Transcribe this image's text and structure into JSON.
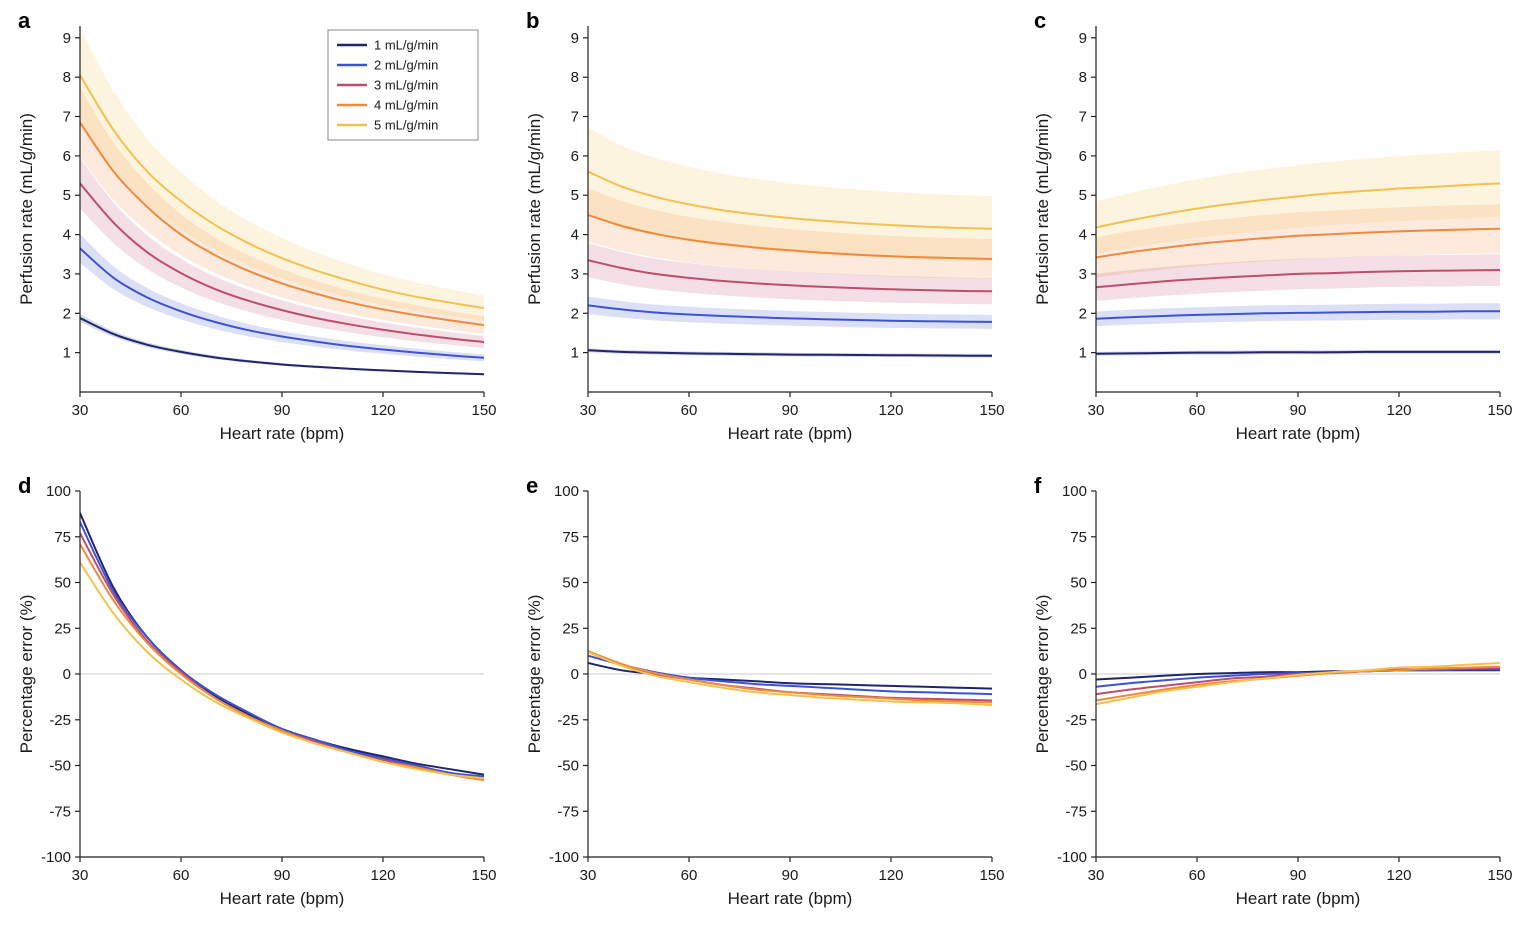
{
  "figure": {
    "background": "#ffffff",
    "axis_color": "#222222",
    "zero_line_color": "#d6d6d6",
    "panel_labels": [
      "a",
      "b",
      "c",
      "d",
      "e",
      "f"
    ]
  },
  "chart_data": [
    {
      "panel_label": "a",
      "type": "line",
      "xlabel": "Heart rate (bpm)",
      "ylabel": "Perfusion rate (mL/g/min)",
      "xlim": [
        30,
        150
      ],
      "ylim": [
        0,
        9.3
      ],
      "xticks": [
        30,
        60,
        90,
        120,
        150
      ],
      "yticks": [
        1,
        2,
        3,
        4,
        5,
        6,
        7,
        8,
        9
      ],
      "grid": false,
      "legend": true,
      "legend_position": "upper-right",
      "x": [
        30,
        40,
        50,
        60,
        70,
        80,
        90,
        100,
        110,
        120,
        130,
        140,
        150
      ],
      "series": [
        {
          "name": "1 mL/g/min",
          "color": "#20256e",
          "band_frac": 0.05,
          "values": [
            1.88,
            1.47,
            1.2,
            1.02,
            0.88,
            0.78,
            0.7,
            0.64,
            0.59,
            0.55,
            0.51,
            0.48,
            0.45
          ]
        },
        {
          "name": "2 mL/g/min",
          "color": "#3d52d5",
          "band_frac": 0.1,
          "values": [
            3.65,
            2.9,
            2.4,
            2.05,
            1.78,
            1.57,
            1.41,
            1.28,
            1.17,
            1.08,
            1.0,
            0.93,
            0.87
          ]
        },
        {
          "name": "3 mL/g/min",
          "color": "#bf4d6e",
          "band_frac": 0.12,
          "values": [
            5.3,
            4.3,
            3.55,
            3.02,
            2.62,
            2.32,
            2.08,
            1.88,
            1.72,
            1.58,
            1.46,
            1.36,
            1.27
          ]
        },
        {
          "name": "4 mL/g/min",
          "color": "#ef8a3c",
          "band_frac": 0.13,
          "values": [
            6.85,
            5.6,
            4.7,
            4.0,
            3.48,
            3.08,
            2.76,
            2.5,
            2.28,
            2.1,
            1.95,
            1.82,
            1.7
          ]
        },
        {
          "name": "5 mL/g/min",
          "color": "#f2c14e",
          "band_frac": 0.15,
          "values": [
            8.05,
            6.65,
            5.6,
            4.85,
            4.25,
            3.78,
            3.4,
            3.09,
            2.83,
            2.6,
            2.42,
            2.27,
            2.13
          ]
        }
      ]
    },
    {
      "panel_label": "b",
      "type": "line",
      "xlabel": "Heart rate (bpm)",
      "ylabel": "Perfusion rate (mL/g/min)",
      "xlim": [
        30,
        150
      ],
      "ylim": [
        0,
        9.3
      ],
      "xticks": [
        30,
        60,
        90,
        120,
        150
      ],
      "yticks": [
        1,
        2,
        3,
        4,
        5,
        6,
        7,
        8,
        9
      ],
      "grid": false,
      "legend": false,
      "x": [
        30,
        40,
        50,
        60,
        70,
        80,
        90,
        100,
        110,
        120,
        130,
        140,
        150
      ],
      "series": [
        {
          "name": "1 mL/g/min",
          "color": "#20256e",
          "band_frac": 0.05,
          "values": [
            1.06,
            1.02,
            1.0,
            0.98,
            0.97,
            0.96,
            0.95,
            0.945,
            0.94,
            0.935,
            0.93,
            0.925,
            0.92
          ]
        },
        {
          "name": "2 mL/g/min",
          "color": "#3d52d5",
          "band_frac": 0.1,
          "values": [
            2.2,
            2.1,
            2.02,
            1.97,
            1.93,
            1.9,
            1.87,
            1.85,
            1.83,
            1.81,
            1.8,
            1.79,
            1.78
          ]
        },
        {
          "name": "3 mL/g/min",
          "color": "#bf4d6e",
          "band_frac": 0.13,
          "values": [
            3.35,
            3.15,
            3.0,
            2.9,
            2.82,
            2.76,
            2.71,
            2.67,
            2.64,
            2.61,
            2.59,
            2.57,
            2.56
          ]
        },
        {
          "name": "4 mL/g/min",
          "color": "#ef8a3c",
          "band_frac": 0.15,
          "values": [
            4.5,
            4.22,
            4.02,
            3.87,
            3.76,
            3.67,
            3.6,
            3.54,
            3.49,
            3.45,
            3.42,
            3.4,
            3.38
          ]
        },
        {
          "name": "5 mL/g/min",
          "color": "#f2c14e",
          "band_frac": 0.2,
          "values": [
            5.6,
            5.22,
            4.96,
            4.77,
            4.62,
            4.51,
            4.42,
            4.35,
            4.29,
            4.24,
            4.2,
            4.17,
            4.15
          ]
        }
      ]
    },
    {
      "panel_label": "c",
      "type": "line",
      "xlabel": "Heart rate (bpm)",
      "ylabel": "Perfusion rate (mL/g/min)",
      "xlim": [
        30,
        150
      ],
      "ylim": [
        0,
        9.3
      ],
      "xticks": [
        30,
        60,
        90,
        120,
        150
      ],
      "yticks": [
        1,
        2,
        3,
        4,
        5,
        6,
        7,
        8,
        9
      ],
      "grid": false,
      "legend": false,
      "x": [
        30,
        40,
        50,
        60,
        70,
        80,
        90,
        100,
        110,
        120,
        130,
        140,
        150
      ],
      "series": [
        {
          "name": "1 mL/g/min",
          "color": "#20256e",
          "band_frac": 0.05,
          "values": [
            0.97,
            0.98,
            0.99,
            1.0,
            1.0,
            1.01,
            1.01,
            1.01,
            1.02,
            1.02,
            1.02,
            1.02,
            1.02
          ]
        },
        {
          "name": "2 mL/g/min",
          "color": "#3d52d5",
          "band_frac": 0.1,
          "values": [
            1.86,
            1.9,
            1.93,
            1.96,
            1.98,
            2.0,
            2.01,
            2.02,
            2.03,
            2.04,
            2.04,
            2.05,
            2.05
          ]
        },
        {
          "name": "3 mL/g/min",
          "color": "#bf4d6e",
          "band_frac": 0.13,
          "values": [
            2.66,
            2.74,
            2.81,
            2.87,
            2.92,
            2.96,
            3.0,
            3.02,
            3.05,
            3.07,
            3.08,
            3.09,
            3.1
          ]
        },
        {
          "name": "4 mL/g/min",
          "color": "#ef8a3c",
          "band_frac": 0.15,
          "values": [
            3.42,
            3.55,
            3.66,
            3.76,
            3.84,
            3.91,
            3.97,
            4.01,
            4.05,
            4.08,
            4.11,
            4.13,
            4.15
          ]
        },
        {
          "name": "5 mL/g/min",
          "color": "#f2c14e",
          "band_frac": 0.16,
          "values": [
            4.18,
            4.36,
            4.52,
            4.66,
            4.78,
            4.88,
            4.97,
            5.05,
            5.11,
            5.17,
            5.21,
            5.26,
            5.3
          ]
        }
      ]
    },
    {
      "panel_label": "d",
      "type": "line",
      "xlabel": "Heart rate (bpm)",
      "ylabel": "Percentage error (%)",
      "xlim": [
        30,
        150
      ],
      "ylim": [
        -100,
        100
      ],
      "xticks": [
        30,
        60,
        90,
        120,
        150
      ],
      "yticks": [
        -100,
        -75,
        -50,
        -25,
        0,
        25,
        50,
        75,
        100
      ],
      "grid": false,
      "legend": false,
      "zero_line": true,
      "x": [
        30,
        40,
        50,
        60,
        70,
        80,
        90,
        100,
        110,
        120,
        130,
        140,
        150
      ],
      "series": [
        {
          "name": "1 mL/g/min",
          "color": "#20256e",
          "band_frac": 0,
          "values": [
            88,
            47,
            20,
            2,
            -12,
            -22,
            -30,
            -36,
            -41,
            -45,
            -49,
            -52,
            -55
          ]
        },
        {
          "name": "2 mL/g/min",
          "color": "#3d52d5",
          "band_frac": 0,
          "values": [
            83,
            45,
            20,
            2,
            -11,
            -21,
            -30,
            -36,
            -42,
            -46,
            -50,
            -54,
            -56
          ]
        },
        {
          "name": "3 mL/g/min",
          "color": "#bf4d6e",
          "band_frac": 0,
          "values": [
            77,
            43,
            18,
            1,
            -13,
            -23,
            -31,
            -37,
            -43,
            -47,
            -51,
            -55,
            -58
          ]
        },
        {
          "name": "4 mL/g/min",
          "color": "#ef8a3c",
          "band_frac": 0,
          "values": [
            71,
            40,
            17,
            0,
            -13,
            -23,
            -31,
            -38,
            -43,
            -48,
            -51,
            -55,
            -58
          ]
        },
        {
          "name": "5 mL/g/min",
          "color": "#f2c14e",
          "band_frac": 0,
          "values": [
            61,
            33,
            12,
            -3,
            -15,
            -24,
            -32,
            -38,
            -43,
            -48,
            -52,
            -55,
            -57
          ]
        }
      ]
    },
    {
      "panel_label": "e",
      "type": "line",
      "xlabel": "Heart rate (bpm)",
      "ylabel": "Percentage error (%)",
      "xlim": [
        30,
        150
      ],
      "ylim": [
        -100,
        100
      ],
      "xticks": [
        30,
        60,
        90,
        120,
        150
      ],
      "yticks": [
        -100,
        -75,
        -50,
        -25,
        0,
        25,
        50,
        75,
        100
      ],
      "grid": false,
      "legend": false,
      "zero_line": true,
      "x": [
        30,
        40,
        50,
        60,
        70,
        80,
        90,
        100,
        110,
        120,
        130,
        140,
        150
      ],
      "series": [
        {
          "name": "1 mL/g/min",
          "color": "#20256e",
          "band_frac": 0,
          "values": [
            6,
            2,
            0,
            -2,
            -3,
            -4,
            -5,
            -5.5,
            -6,
            -6.5,
            -7,
            -7.5,
            -8
          ]
        },
        {
          "name": "2 mL/g/min",
          "color": "#3d52d5",
          "band_frac": 0,
          "values": [
            10,
            5,
            1,
            -2,
            -4,
            -5.5,
            -6.5,
            -7.5,
            -8.5,
            -9.5,
            -10,
            -10.5,
            -11
          ]
        },
        {
          "name": "3 mL/g/min",
          "color": "#bf4d6e",
          "band_frac": 0,
          "values": [
            12,
            5,
            0,
            -3,
            -6,
            -8,
            -10,
            -11,
            -12,
            -13,
            -13.5,
            -14,
            -14.5
          ]
        },
        {
          "name": "4 mL/g/min",
          "color": "#ef8a3c",
          "band_frac": 0,
          "values": [
            12.5,
            5.5,
            0.5,
            -3,
            -6,
            -8.5,
            -10,
            -11.5,
            -12.5,
            -13.5,
            -14.5,
            -15,
            -15.5
          ]
        },
        {
          "name": "5 mL/g/min",
          "color": "#f2c14e",
          "band_frac": 0,
          "values": [
            12,
            4.5,
            -1,
            -4.5,
            -7.5,
            -10,
            -11.5,
            -13,
            -14,
            -15,
            -15.5,
            -16,
            -17
          ]
        }
      ]
    },
    {
      "panel_label": "f",
      "type": "line",
      "xlabel": "Heart rate (bpm)",
      "ylabel": "Percentage error (%)",
      "xlim": [
        30,
        150
      ],
      "ylim": [
        -100,
        100
      ],
      "xticks": [
        30,
        60,
        90,
        120,
        150
      ],
      "yticks": [
        -100,
        -75,
        -50,
        -25,
        0,
        25,
        50,
        75,
        100
      ],
      "grid": false,
      "legend": false,
      "zero_line": true,
      "x": [
        30,
        40,
        50,
        60,
        70,
        80,
        90,
        100,
        110,
        120,
        130,
        140,
        150
      ],
      "series": [
        {
          "name": "1 mL/g/min",
          "color": "#20256e",
          "band_frac": 0,
          "values": [
            -3,
            -2,
            -1,
            0,
            0.5,
            1,
            1,
            1.5,
            1.5,
            2,
            2,
            2,
            2
          ]
        },
        {
          "name": "2 mL/g/min",
          "color": "#3d52d5",
          "band_frac": 0,
          "values": [
            -7,
            -5,
            -3.5,
            -2,
            -1,
            0,
            0.5,
            1,
            1.5,
            2,
            2,
            2.5,
            2.5
          ]
        },
        {
          "name": "3 mL/g/min",
          "color": "#bf4d6e",
          "band_frac": 0,
          "values": [
            -11,
            -8.5,
            -6.5,
            -4.5,
            -2.5,
            -1.5,
            0,
            0.5,
            1.5,
            2.5,
            2.5,
            3,
            3.5
          ]
        },
        {
          "name": "4 mL/g/min",
          "color": "#ef8a3c",
          "band_frac": 0,
          "values": [
            -14.5,
            -11.5,
            -8.5,
            -6,
            -4,
            -2.5,
            -1,
            0.5,
            1.5,
            2,
            3,
            3.5,
            4
          ]
        },
        {
          "name": "5 mL/g/min",
          "color": "#f2c14e",
          "band_frac": 0,
          "values": [
            -16.5,
            -13,
            -9.5,
            -7,
            -4.5,
            -2.5,
            -0.5,
            1,
            2,
            3.5,
            4,
            5,
            6
          ]
        }
      ]
    }
  ]
}
